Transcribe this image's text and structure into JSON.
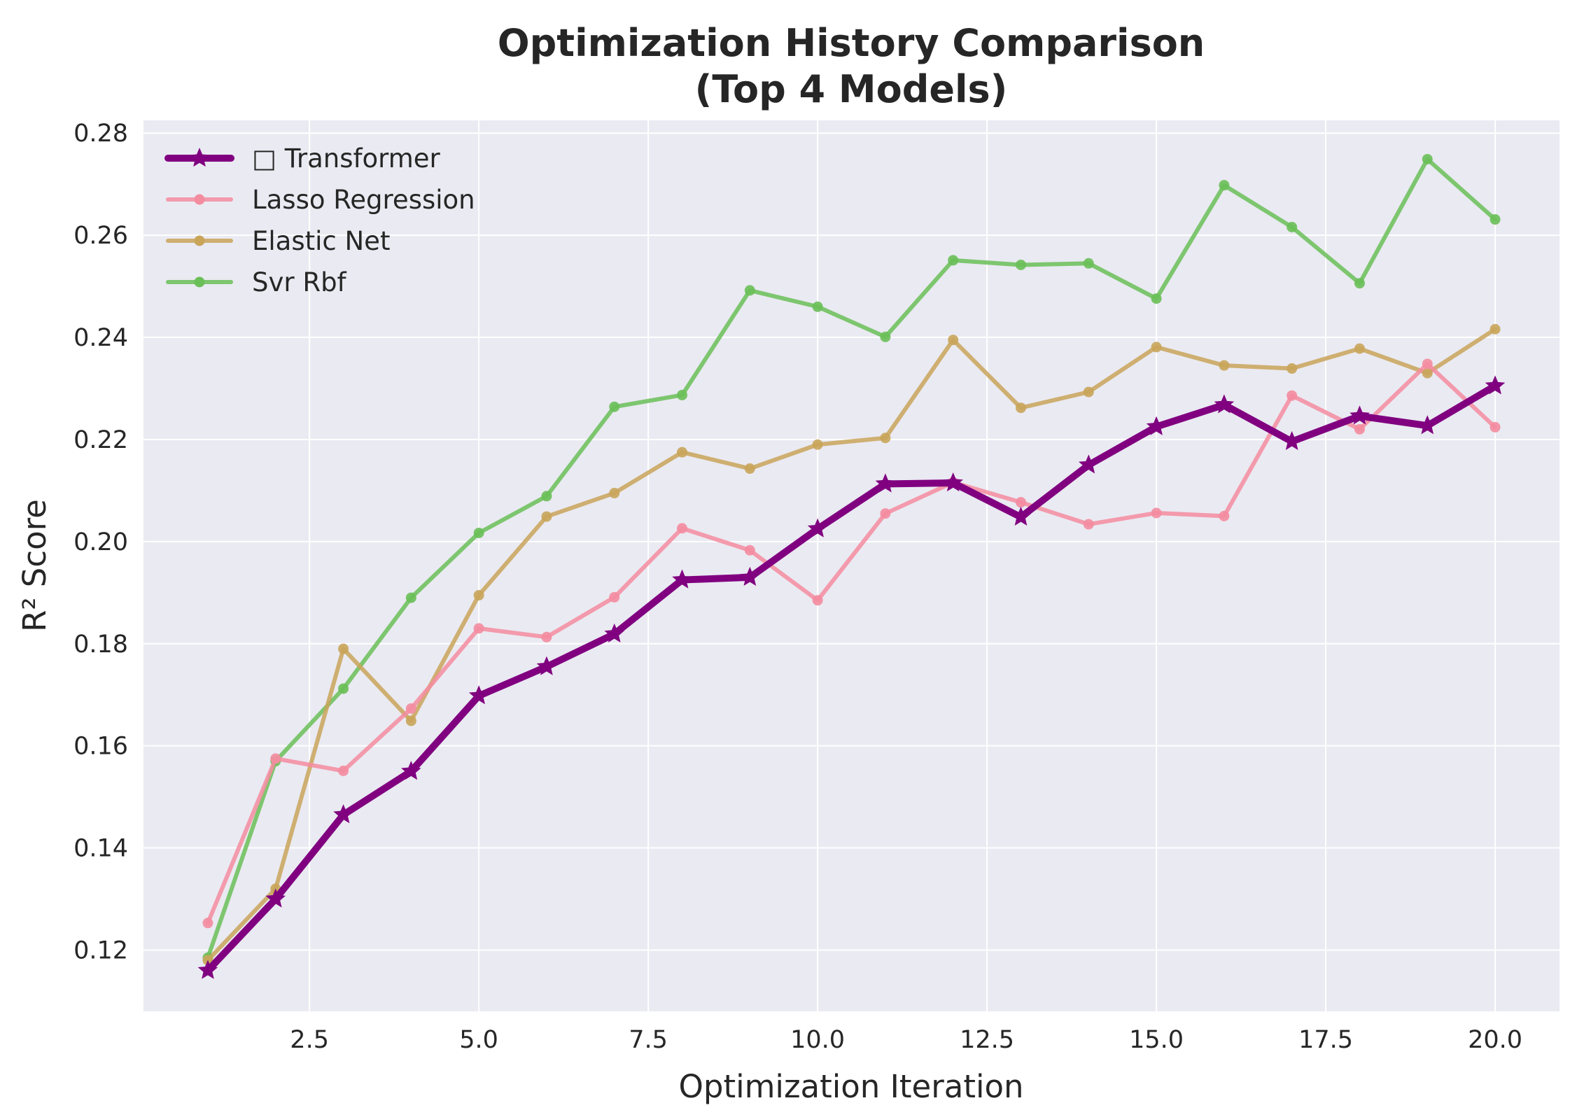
{
  "chart_data": {
    "type": "line",
    "title_line1": "Optimization History Comparison",
    "title_line2": "(Top 4 Models)",
    "xlabel": "Optimization Iteration",
    "ylabel": "R² Score",
    "xlim": [
      0.05,
      20.95
    ],
    "ylim": [
      0.108,
      0.2825
    ],
    "xticks": [
      2.5,
      5.0,
      7.5,
      10.0,
      12.5,
      15.0,
      17.5,
      20.0
    ],
    "xtick_labels": [
      "2.5",
      "5.0",
      "7.5",
      "10.0",
      "12.5",
      "15.0",
      "17.5",
      "20.0"
    ],
    "yticks": [
      0.12,
      0.14,
      0.16,
      0.18,
      0.2,
      0.22,
      0.24,
      0.26,
      0.28
    ],
    "ytick_labels": [
      "0.12",
      "0.14",
      "0.16",
      "0.18",
      "0.20",
      "0.22",
      "0.24",
      "0.26",
      "0.28"
    ],
    "grid": true,
    "legend_position": "top-left",
    "x": [
      1,
      2,
      3,
      4,
      5,
      6,
      7,
      8,
      9,
      10,
      11,
      12,
      13,
      14,
      15,
      16,
      17,
      18,
      19,
      20
    ],
    "series": [
      {
        "name": "Svr Rbf",
        "color": "#6abf58",
        "marker": "circle",
        "values": [
          0.1185,
          0.157,
          0.1712,
          0.189,
          0.2017,
          0.2089,
          0.2264,
          0.2287,
          0.2492,
          0.246,
          0.2401,
          0.2551,
          0.2542,
          0.2545,
          0.2476,
          0.2698,
          0.2616,
          0.2506,
          0.2749,
          0.2631
        ]
      },
      {
        "name": "Elastic Net",
        "color": "#c9a55a",
        "marker": "circle",
        "values": [
          0.118,
          0.132,
          0.179,
          0.1649,
          0.1895,
          0.2049,
          0.2095,
          0.2175,
          0.2143,
          0.219,
          0.2203,
          0.2395,
          0.2262,
          0.2293,
          0.2381,
          0.2345,
          0.2339,
          0.2378,
          0.233,
          0.2416
        ]
      },
      {
        "name": "Lasso Regression",
        "color": "#f48ca0",
        "marker": "circle",
        "values": [
          0.1253,
          0.1575,
          0.1551,
          0.1673,
          0.183,
          0.1813,
          0.1891,
          0.2026,
          0.1983,
          0.1885,
          0.2055,
          0.2116,
          0.2077,
          0.2034,
          0.2056,
          0.205,
          0.2286,
          0.222,
          0.2348,
          0.2224
        ]
      },
      {
        "name": "□ Transformer",
        "color": "#800080",
        "marker": "star",
        "values": [
          0.116,
          0.13,
          0.1465,
          0.155,
          0.1698,
          0.1755,
          0.1819,
          0.1925,
          0.193,
          0.2025,
          0.2113,
          0.2115,
          0.2048,
          0.215,
          0.2225,
          0.2268,
          0.2196,
          0.2246,
          0.2227,
          0.2305
        ]
      }
    ],
    "legend_order": [
      "□ Transformer",
      "Lasso Regression",
      "Elastic Net",
      "Svr Rbf"
    ]
  }
}
